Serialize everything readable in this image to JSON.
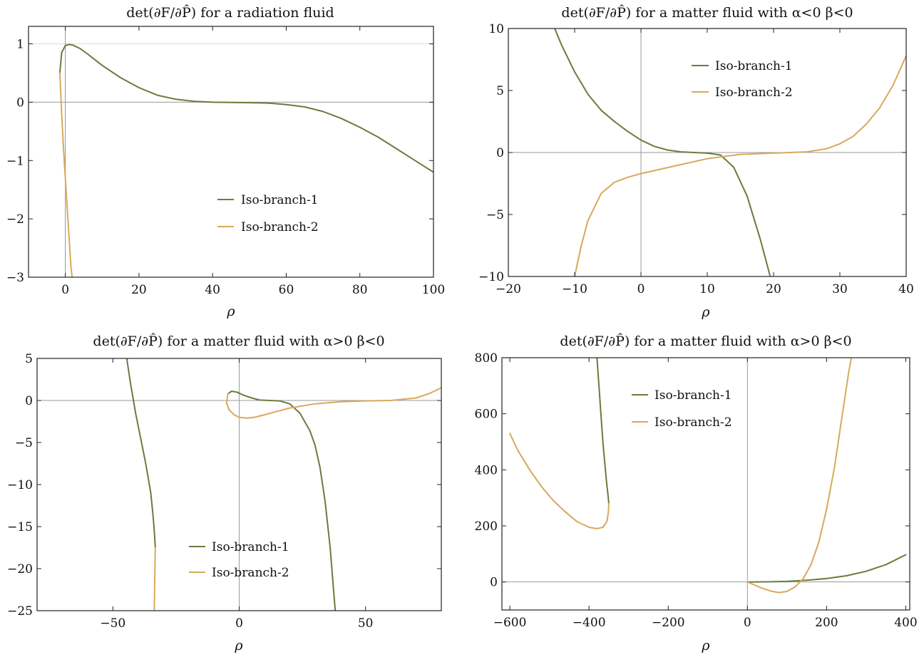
{
  "colors": {
    "branch1": "#6b7b3e",
    "branch2": "#d7a95c"
  },
  "chart_data": [
    {
      "type": "line",
      "title": "det(∂F/∂P̂) for a radiation fluid",
      "xlabel": "ρ",
      "ylabel": "",
      "xlim": [
        -10,
        100
      ],
      "ylim": [
        -3,
        1.3
      ],
      "xticks": [
        0,
        20,
        40,
        60,
        80,
        100
      ],
      "yticks": [
        1,
        0,
        -1,
        -2,
        -3
      ],
      "legend_position": "center-right-lower",
      "grid": "partial",
      "series": [
        {
          "name": "Iso-branch-1",
          "x": [
            -1.5,
            -1,
            0,
            1,
            2,
            4,
            6,
            8,
            10,
            15,
            20,
            25,
            30,
            35,
            40,
            45,
            50,
            55,
            60,
            65,
            70,
            75,
            80,
            85,
            90,
            95,
            100
          ],
          "y": [
            0.5,
            0.85,
            0.97,
            0.99,
            0.98,
            0.92,
            0.83,
            0.73,
            0.63,
            0.42,
            0.25,
            0.12,
            0.05,
            0.015,
            0.0,
            -0.003,
            -0.008,
            -0.015,
            -0.04,
            -0.08,
            -0.16,
            -0.28,
            -0.43,
            -0.6,
            -0.8,
            -1.0,
            -1.2
          ]
        },
        {
          "name": "Iso-branch-2",
          "x": [
            -1.5,
            -1,
            -0.5,
            0,
            0.5,
            1,
            1.5,
            2
          ],
          "y": [
            0.5,
            -0.2,
            -0.8,
            -1.3,
            -1.8,
            -2.3,
            -2.8,
            -3.1
          ]
        }
      ]
    },
    {
      "type": "line",
      "title": "det(∂F/∂P̂) for a matter fluid with α<0 β<0",
      "xlabel": "ρ",
      "ylabel": "",
      "xlim": [
        -20,
        40
      ],
      "ylim": [
        -10,
        10
      ],
      "xticks": [
        -20,
        -10,
        0,
        10,
        20,
        30,
        40
      ],
      "yticks": [
        10,
        5,
        0,
        -5,
        -10
      ],
      "legend_position": "top-center",
      "series": [
        {
          "name": "Iso-branch-1",
          "x": [
            -13,
            -12,
            -10,
            -8,
            -6,
            -4,
            -2,
            0,
            2,
            4,
            6,
            8,
            10,
            12,
            14,
            16,
            18,
            19.5
          ],
          "y": [
            10,
            8.7,
            6.5,
            4.7,
            3.4,
            2.5,
            1.7,
            1.0,
            0.5,
            0.2,
            0.05,
            0.0,
            -0.05,
            -0.2,
            -1.2,
            -3.5,
            -7.0,
            -10
          ]
        },
        {
          "name": "Iso-branch-2",
          "x": [
            -10,
            -9,
            -8,
            -6,
            -4,
            -2,
            0,
            5,
            10,
            15,
            20,
            25,
            28,
            30,
            32,
            34,
            36,
            38,
            40
          ],
          "y": [
            -10,
            -7.5,
            -5.5,
            -3.3,
            -2.4,
            -2.0,
            -1.7,
            -1.1,
            -0.5,
            -0.15,
            -0.05,
            0.05,
            0.3,
            0.7,
            1.3,
            2.3,
            3.6,
            5.4,
            7.8
          ]
        }
      ]
    },
    {
      "type": "line",
      "title": "det(∂F/∂P̂) for a matter fluid with α>0 β<0",
      "xlabel": "ρ",
      "ylabel": "",
      "xlim": [
        -80,
        80
      ],
      "ylim": [
        -25,
        5
      ],
      "xticks": [
        -50,
        0,
        50
      ],
      "yticks": [
        5,
        0,
        -5,
        -10,
        -15,
        -20,
        -25
      ],
      "legend_position": "bottom-center",
      "series": [
        {
          "name": "Iso-branch-1",
          "x": [
            -44.5,
            -43,
            -41,
            -39,
            -37,
            -35,
            -34,
            -33.5,
            -33.2
          ],
          "y": [
            5,
            2,
            -1.5,
            -4.5,
            -7.5,
            -11,
            -14,
            -16,
            -17.5
          ]
        },
        {
          "name": "Iso-branch-1",
          "x": [
            -4.5,
            -3,
            -1,
            2,
            5,
            8,
            12,
            16,
            20,
            24,
            28,
            30,
            32,
            34,
            36,
            38
          ],
          "y": [
            0.8,
            1.1,
            1.0,
            0.6,
            0.3,
            0.05,
            0.0,
            -0.05,
            -0.4,
            -1.5,
            -3.6,
            -5.3,
            -8.0,
            -12,
            -17.5,
            -25
          ]
        },
        {
          "name": "Iso-branch-2",
          "x": [
            -33.2,
            -33.4,
            -33.6
          ],
          "y": [
            -17.5,
            -21,
            -25
          ]
        },
        {
          "name": "Iso-branch-2",
          "x": [
            -4.5,
            -5,
            -4,
            -2,
            0,
            3,
            6,
            10,
            15,
            20,
            30,
            40,
            50,
            60,
            70,
            75,
            80
          ],
          "y": [
            0.8,
            -0.3,
            -1.1,
            -1.7,
            -2.0,
            -2.1,
            -2.0,
            -1.7,
            -1.3,
            -0.9,
            -0.4,
            -0.15,
            -0.05,
            0.0,
            0.3,
            0.8,
            1.5
          ]
        }
      ]
    },
    {
      "type": "line",
      "title": "det(∂F/∂P̂) for a matter fluid with α>0 β<0",
      "xlabel": "ρ",
      "ylabel": "",
      "xlim": [
        -620,
        410
      ],
      "ylim": [
        -100,
        800
      ],
      "xticks": [
        -600,
        -400,
        -200,
        0,
        200,
        400
      ],
      "yticks": [
        800,
        600,
        400,
        200,
        0
      ],
      "legend_position": "top-left",
      "series": [
        {
          "name": "Iso-branch-1",
          "x": [
            -380,
            -375,
            -370,
            -365,
            -360,
            -356,
            -352,
            -350
          ],
          "y": [
            800,
            700,
            600,
            500,
            420,
            360,
            310,
            280
          ]
        },
        {
          "name": "Iso-branch-1",
          "x": [
            0,
            50,
            100,
            150,
            200,
            250,
            300,
            350,
            400
          ],
          "y": [
            0,
            0.5,
            2,
            6,
            12,
            22,
            38,
            62,
            97
          ]
        },
        {
          "name": "Iso-branch-2",
          "x": [
            -600,
            -580,
            -550,
            -520,
            -490,
            -460,
            -430,
            -400,
            -380,
            -365,
            -355,
            -351,
            -350
          ],
          "y": [
            530,
            470,
            400,
            340,
            290,
            250,
            215,
            195,
            190,
            195,
            215,
            250,
            280
          ]
        },
        {
          "name": "Iso-branch-2",
          "x": [
            0,
            20,
            40,
            60,
            80,
            100,
            120,
            140,
            160,
            180,
            200,
            220,
            240,
            255,
            265
          ],
          "y": [
            0,
            -12,
            -24,
            -33,
            -38,
            -34,
            -18,
            10,
            60,
            140,
            260,
            410,
            600,
            740,
            820
          ]
        }
      ]
    }
  ]
}
